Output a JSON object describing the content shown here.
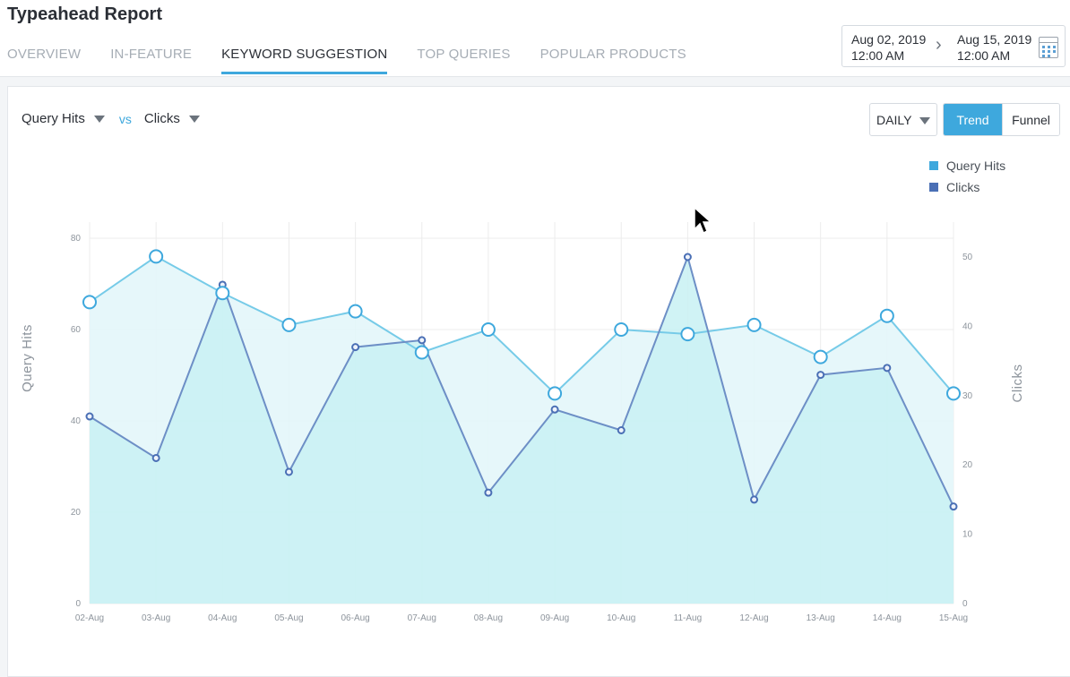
{
  "header": {
    "title": "Typeahead Report",
    "tabs": [
      {
        "label": "OVERVIEW",
        "active": false
      },
      {
        "label": "IN-FEATURE",
        "active": false
      },
      {
        "label": "KEYWORD SUGGESTION",
        "active": true
      },
      {
        "label": "TOP QUERIES",
        "active": false
      },
      {
        "label": "POPULAR PRODUCTS",
        "active": false
      }
    ],
    "date_range": {
      "start_date": "Aug 02, 2019",
      "start_time": "12:00 AM",
      "end_date": "Aug 15, 2019",
      "end_time": "12:00 AM"
    }
  },
  "controls": {
    "metric_a": "Query Hits",
    "vs_label": "vs",
    "metric_b": "Clicks",
    "period": "DAILY",
    "view_trend": "Trend",
    "view_funnel": "Funnel"
  },
  "colors": {
    "accent": "#3ea8dd",
    "query_hits": "#6cc6e6",
    "clicks": "#4a78b8"
  },
  "chart_data": {
    "type": "area",
    "categories": [
      "02-Aug",
      "03-Aug",
      "04-Aug",
      "05-Aug",
      "06-Aug",
      "07-Aug",
      "08-Aug",
      "09-Aug",
      "10-Aug",
      "11-Aug",
      "12-Aug",
      "13-Aug",
      "14-Aug",
      "15-Aug"
    ],
    "series": [
      {
        "name": "Query Hits",
        "axis": "left",
        "values": [
          66,
          76,
          68,
          61,
          64,
          55,
          60,
          46,
          60,
          59,
          61,
          54,
          63,
          46
        ]
      },
      {
        "name": "Clicks",
        "axis": "right",
        "values": [
          27,
          21,
          46,
          19,
          37,
          38,
          16,
          28,
          25,
          50,
          15,
          33,
          34,
          14
        ]
      }
    ],
    "ylabel": "Query Hits",
    "y2label": "Clicks",
    "ylim": [
      0,
      80
    ],
    "y2lim": [
      0,
      50
    ],
    "yticks": [
      0,
      20,
      40,
      60,
      80
    ],
    "y2ticks": [
      0,
      10,
      20,
      30,
      40,
      50
    ],
    "legend": [
      "Query Hits",
      "Clicks"
    ],
    "legend_position": "top-right",
    "grid": true
  }
}
